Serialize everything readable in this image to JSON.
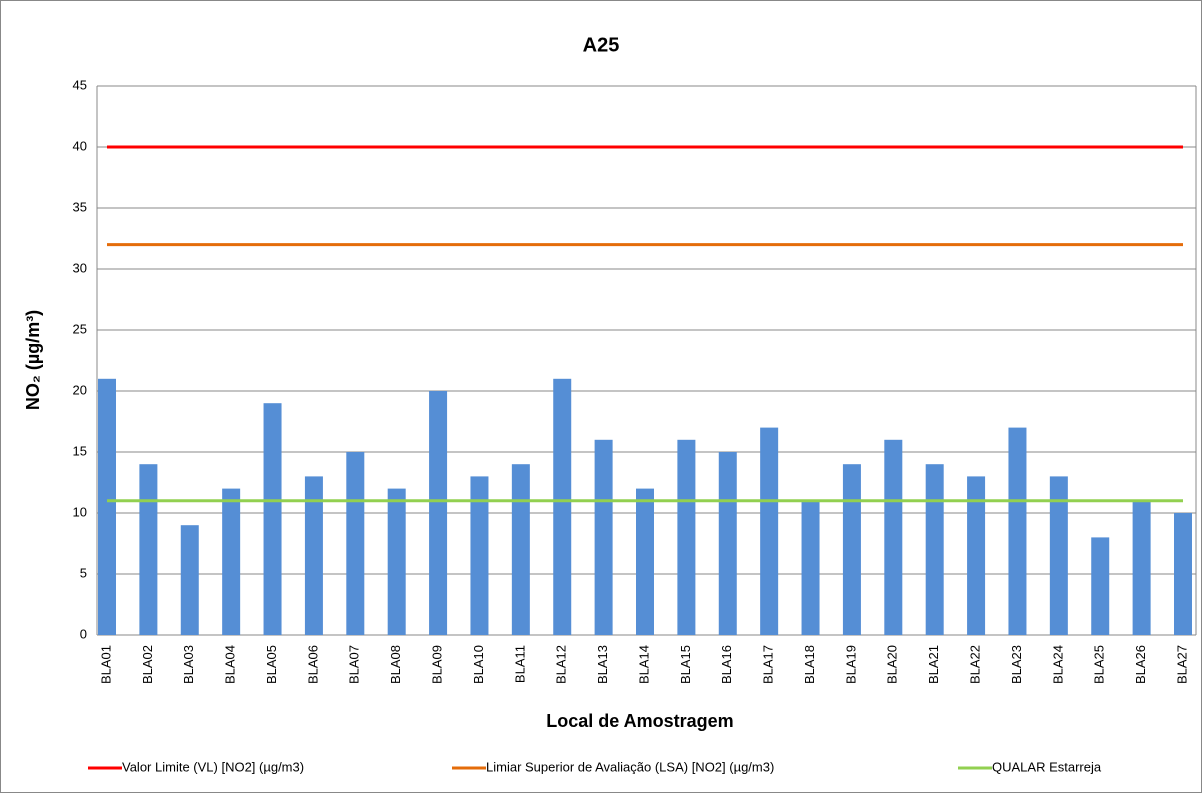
{
  "chart_data": {
    "type": "bar",
    "title": "A25",
    "x_label": "Local de Amostragem",
    "y_label": "NO₂ (µg/m³)",
    "categories": [
      "BLA01",
      "BLA02",
      "BLA03",
      "BLA04",
      "BLA05",
      "BLA06",
      "BLA07",
      "BLA08",
      "BLA09",
      "BLA10",
      "BLA11",
      "BLA12",
      "BLA13",
      "BLA14",
      "BLA15",
      "BLA16",
      "BLA17",
      "BLA18",
      "BLA19",
      "BLA20",
      "BLA21",
      "BLA22",
      "BLA23",
      "BLA24",
      "BLA25",
      "BLA26",
      "BLA27"
    ],
    "values": [
      21,
      14,
      9,
      12,
      19,
      13,
      15,
      12,
      20,
      13,
      14,
      21,
      16,
      12,
      16,
      15,
      17,
      11,
      14,
      16,
      14,
      13,
      17,
      13,
      8,
      11,
      10
    ],
    "color": "#558ed5",
    "series": [
      {
        "name": "Valor Limite (VL) [NO2] (µg/m3)",
        "color": "#ff0000",
        "values": [
          40,
          40,
          40,
          40,
          40,
          40,
          40,
          40,
          40,
          40,
          40,
          40,
          40,
          40,
          40,
          40,
          40,
          40,
          40,
          40,
          40,
          40,
          40,
          40,
          40,
          40,
          40
        ]
      },
      {
        "name": "Limiar Superior de Avaliação (LSA) [NO2] (µg/m3)",
        "color": "#e46c0a",
        "values": [
          32,
          32,
          32,
          32,
          32,
          32,
          32,
          32,
          32,
          32,
          32,
          32,
          32,
          32,
          32,
          32,
          32,
          32,
          32,
          32,
          32,
          32,
          32,
          32,
          32,
          32,
          32
        ]
      },
      {
        "name": "QUALAR Estarreja",
        "color": "#92d050",
        "values": [
          11,
          11,
          11,
          11,
          11,
          11,
          11,
          11,
          11,
          11,
          11,
          11,
          11,
          11,
          11,
          11,
          11,
          11,
          11,
          11,
          11,
          11,
          11,
          11,
          11,
          11,
          11
        ]
      }
    ],
    "ylim": [
      0,
      45
    ],
    "yticks": [
      0,
      5,
      10,
      15,
      20,
      25,
      30,
      35,
      40,
      45
    ],
    "grid": true,
    "legend": "bottom"
  }
}
